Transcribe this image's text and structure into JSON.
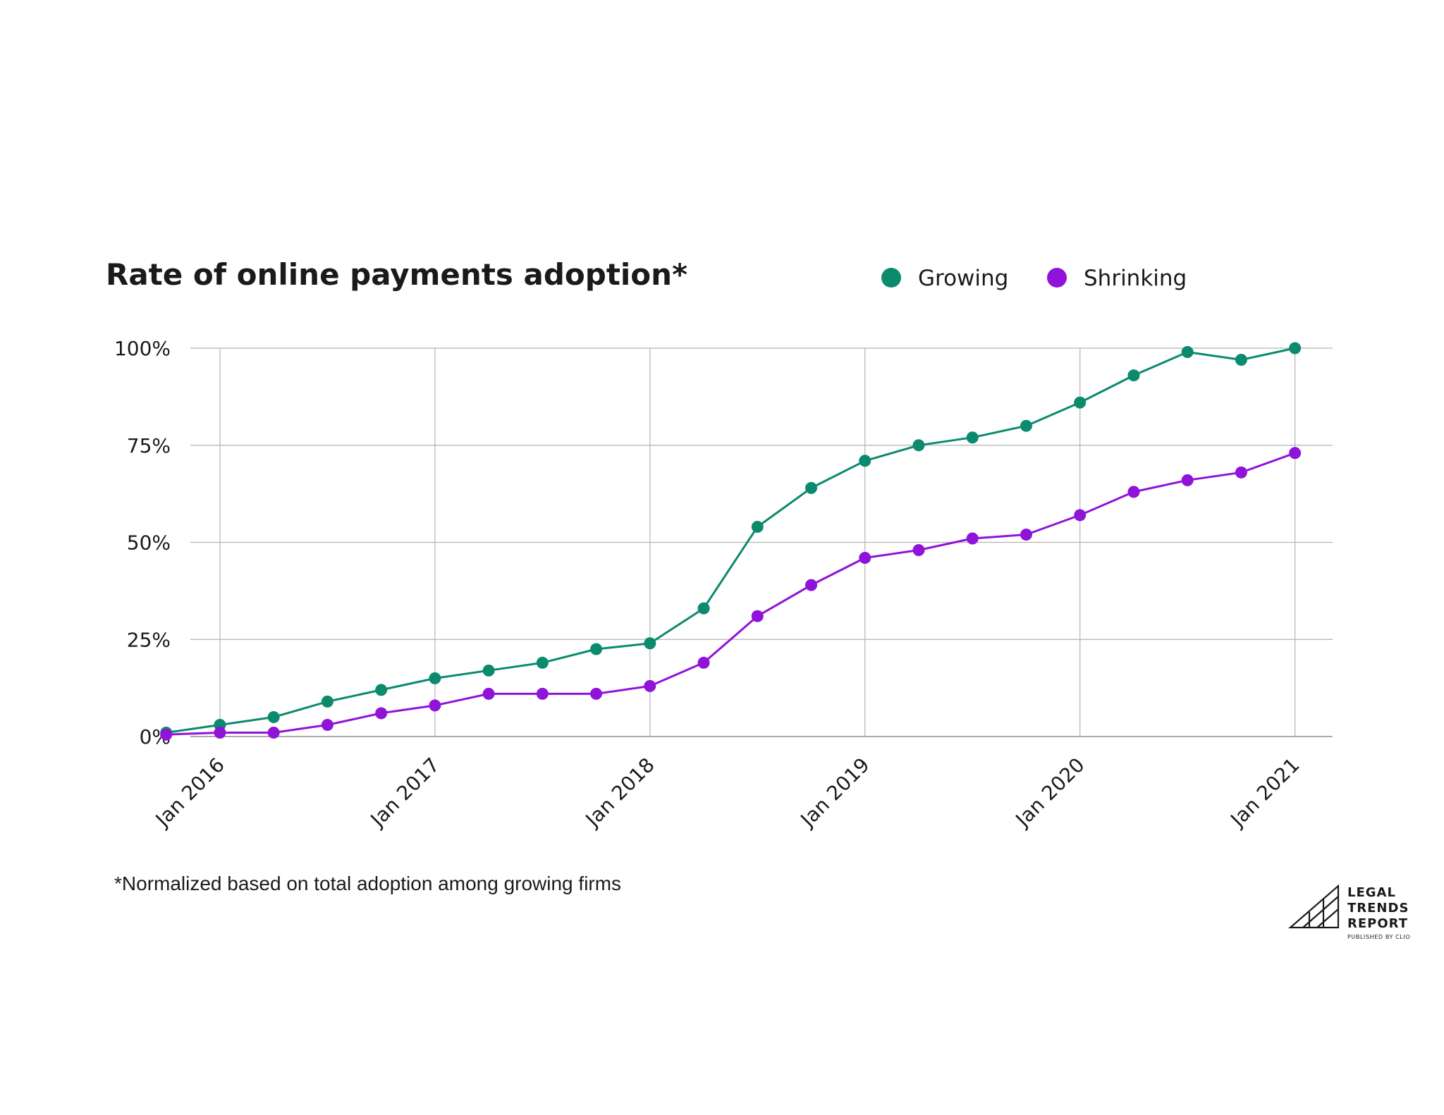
{
  "chart_data": {
    "type": "line",
    "title": "Rate of online payments adoption*",
    "footnote": "*Normalized based on total adoption among growing firms",
    "ylim": [
      0,
      100
    ],
    "y_ticks": [
      "0%",
      "25%",
      "50%",
      "75%",
      "100%"
    ],
    "x_ticks": [
      "Jan 2016",
      "Jan 2017",
      "Jan 2018",
      "Jan 2019",
      "Jan 2020",
      "Jan 2021"
    ],
    "x_tick_positions": [
      1,
      5,
      9,
      13,
      17,
      21
    ],
    "xlim": [
      0.45,
      21.7
    ],
    "grid": true,
    "legend_position": "top-right",
    "series": [
      {
        "name": "Growing",
        "color": "#0b8a6e",
        "x": [
          0,
          1,
          2,
          3,
          4,
          5,
          6,
          7,
          8,
          9,
          10,
          11,
          12,
          13,
          14,
          15,
          16,
          17,
          18,
          19,
          20,
          21
        ],
        "values": [
          1,
          3,
          5,
          9,
          12,
          15,
          17,
          19,
          22.5,
          24,
          33,
          54,
          64,
          71,
          75,
          77,
          80,
          86,
          93,
          99,
          97,
          100
        ]
      },
      {
        "name": "Shrinking",
        "color": "#9013d9",
        "x": [
          0,
          1,
          2,
          3,
          4,
          5,
          6,
          7,
          8,
          9,
          10,
          11,
          12,
          13,
          14,
          15,
          16,
          17,
          18,
          19,
          20,
          21
        ],
        "values": [
          0.5,
          1,
          1,
          3,
          6,
          8,
          11,
          11,
          11,
          13,
          19,
          31,
          39,
          46,
          48,
          51,
          52,
          57,
          63,
          66,
          68,
          73
        ]
      }
    ]
  },
  "logo": {
    "line1": "LEGAL",
    "line2": "TRENDS",
    "line3": "REPORT",
    "sub": "PUBLISHED BY CLIO"
  }
}
